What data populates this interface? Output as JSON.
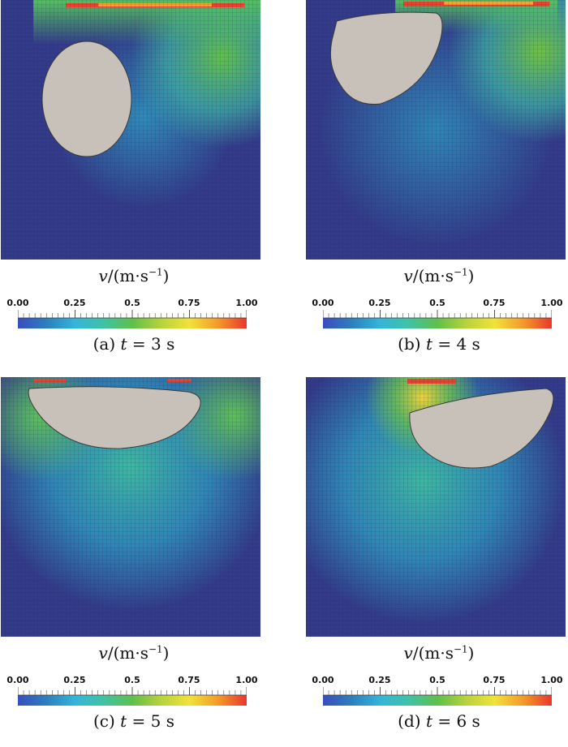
{
  "unit_label": {
    "var": "v",
    "rest": "/(m·s",
    "exp": "−1",
    "close": ")"
  },
  "colorbar": {
    "ticks": [
      "0.00",
      "0.25",
      "0.5",
      "0.75",
      "1.00"
    ],
    "colors": [
      "#3b4cc0",
      "#2c7fbf",
      "#34b5d9",
      "#3fc3a5",
      "#5fbf4a",
      "#b6d33c",
      "#f2e23a",
      "#f49a2a",
      "#e8372c"
    ]
  },
  "panels": [
    {
      "caption_prefix": "(a)",
      "t_symbol": "t",
      "t_value": "= 3 s"
    },
    {
      "caption_prefix": "(b)",
      "t_symbol": "t",
      "t_value": "= 4 s"
    },
    {
      "caption_prefix": "(c)",
      "t_symbol": "t",
      "t_value": "= 5 s"
    },
    {
      "caption_prefix": "(d)",
      "t_symbol": "t",
      "t_value": "= 6 s"
    }
  ]
}
